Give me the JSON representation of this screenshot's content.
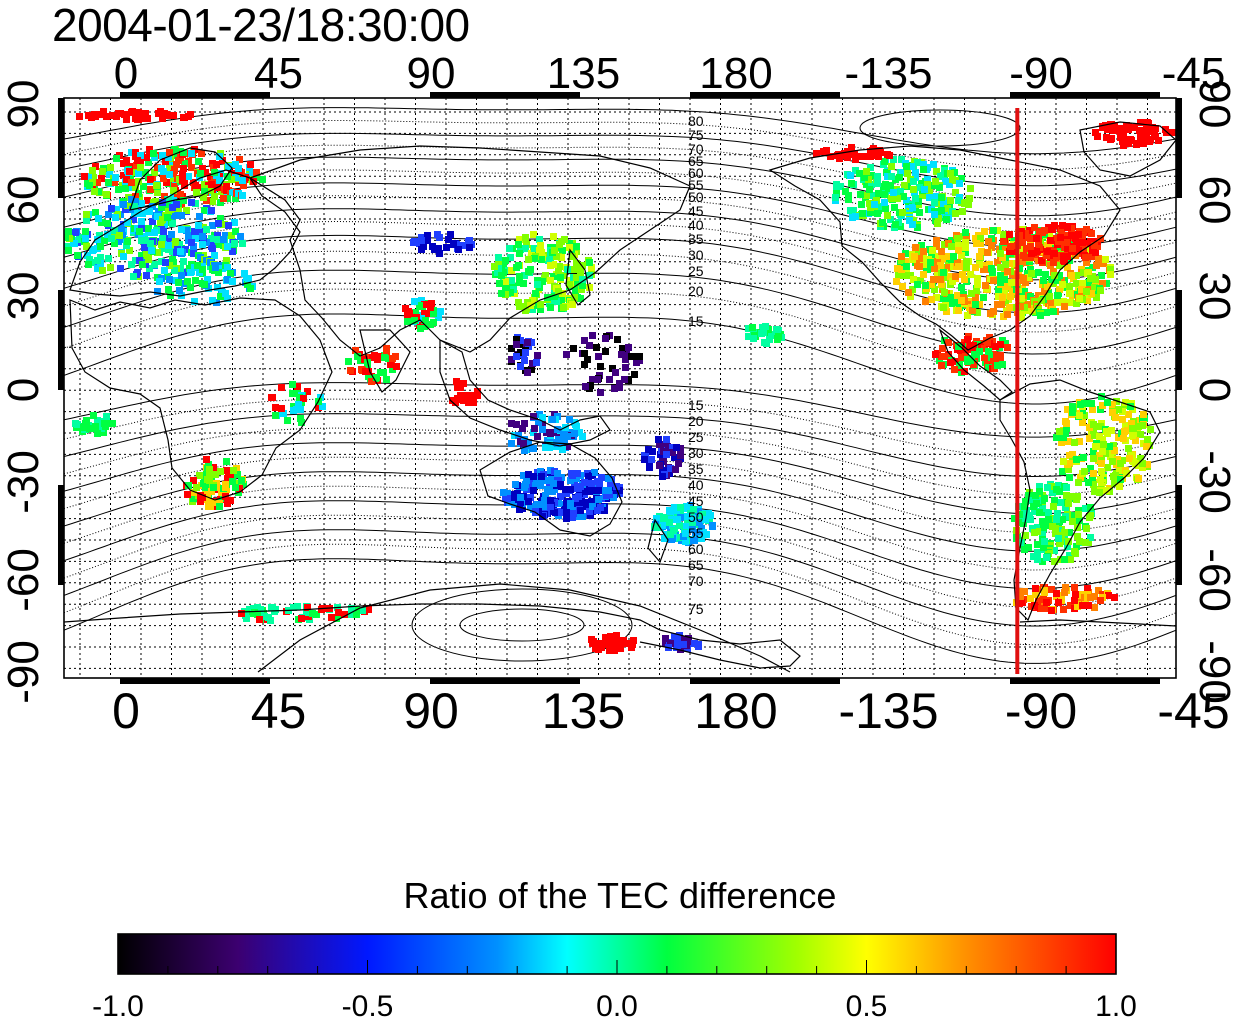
{
  "timestamp": "2004-01-23/18:30:00",
  "map": {
    "x_ticks_top": [
      "0",
      "45",
      "90",
      "135",
      "180",
      "-135",
      "-90",
      "-45"
    ],
    "x_ticks_bottom": [
      "0",
      "45",
      "90",
      "135",
      "180",
      "-135",
      "-90",
      "-45"
    ],
    "y_ticks_left": [
      "90",
      "60",
      "30",
      "0",
      "-30",
      "-60",
      "-90"
    ],
    "y_ticks_right": [
      "90",
      "60",
      "30",
      "0",
      "-30",
      "-60",
      "-90"
    ],
    "contour_labels_north": [
      "80",
      "75",
      "70",
      "65",
      "60",
      "55",
      "50",
      "45",
      "40",
      "35",
      "30",
      "25",
      "20",
      "15"
    ],
    "contour_labels_south": [
      "15",
      "20",
      "25",
      "30",
      "35",
      "40",
      "45",
      "50",
      "55",
      "60",
      "65",
      "70",
      "75"
    ],
    "meridian_line_color": "#e01010",
    "meridian_line_longitude": -97,
    "grid": true
  },
  "colorbar": {
    "title": "Ratio of the TEC difference",
    "tick_labels": [
      "-1.0",
      "-0.5",
      "0.0",
      "0.5",
      "1.0"
    ],
    "range": [
      -1.0,
      1.0
    ],
    "colors": [
      "#000000",
      "#5a0090",
      "#0010ff",
      "#00f0f0",
      "#00ff00",
      "#ffff00",
      "#ff8000",
      "#ff0000"
    ]
  }
}
